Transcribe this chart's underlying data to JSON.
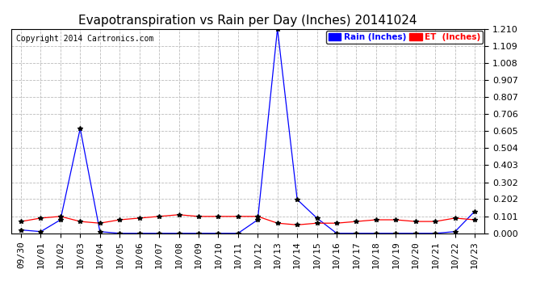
{
  "title": "Evapotranspiration vs Rain per Day (Inches) 20141024",
  "copyright": "Copyright 2014 Cartronics.com",
  "x_labels": [
    "09/30",
    "10/01",
    "10/02",
    "10/03",
    "10/04",
    "10/05",
    "10/06",
    "10/07",
    "10/08",
    "10/09",
    "10/10",
    "10/11",
    "10/12",
    "10/13",
    "10/14",
    "10/15",
    "10/16",
    "10/17",
    "10/18",
    "10/19",
    "10/20",
    "10/21",
    "10/22",
    "10/23"
  ],
  "rain_values": [
    0.02,
    0.01,
    0.08,
    0.62,
    0.01,
    0.0,
    0.0,
    0.0,
    0.0,
    0.0,
    0.0,
    0.0,
    0.08,
    1.21,
    0.2,
    0.09,
    0.0,
    0.0,
    0.0,
    0.0,
    0.0,
    0.0,
    0.01,
    0.13
  ],
  "et_values": [
    0.07,
    0.09,
    0.1,
    0.07,
    0.06,
    0.08,
    0.09,
    0.1,
    0.11,
    0.1,
    0.1,
    0.1,
    0.1,
    0.06,
    0.05,
    0.06,
    0.06,
    0.07,
    0.08,
    0.08,
    0.07,
    0.07,
    0.09,
    0.08
  ],
  "rain_color": "#0000ff",
  "et_color": "#ff0000",
  "background_color": "#ffffff",
  "grid_color": "#bbbbbb",
  "ylim_min": 0.0,
  "ylim_max": 1.21,
  "yticks": [
    0.0,
    0.101,
    0.202,
    0.302,
    0.403,
    0.504,
    0.605,
    0.706,
    0.807,
    0.907,
    1.008,
    1.109,
    1.21
  ],
  "title_fontsize": 11,
  "tick_fontsize": 8,
  "copyright_fontsize": 7,
  "legend_rain_label": "Rain (Inches)",
  "legend_et_label": "ET  (Inches)",
  "legend_fontsize": 7.5
}
